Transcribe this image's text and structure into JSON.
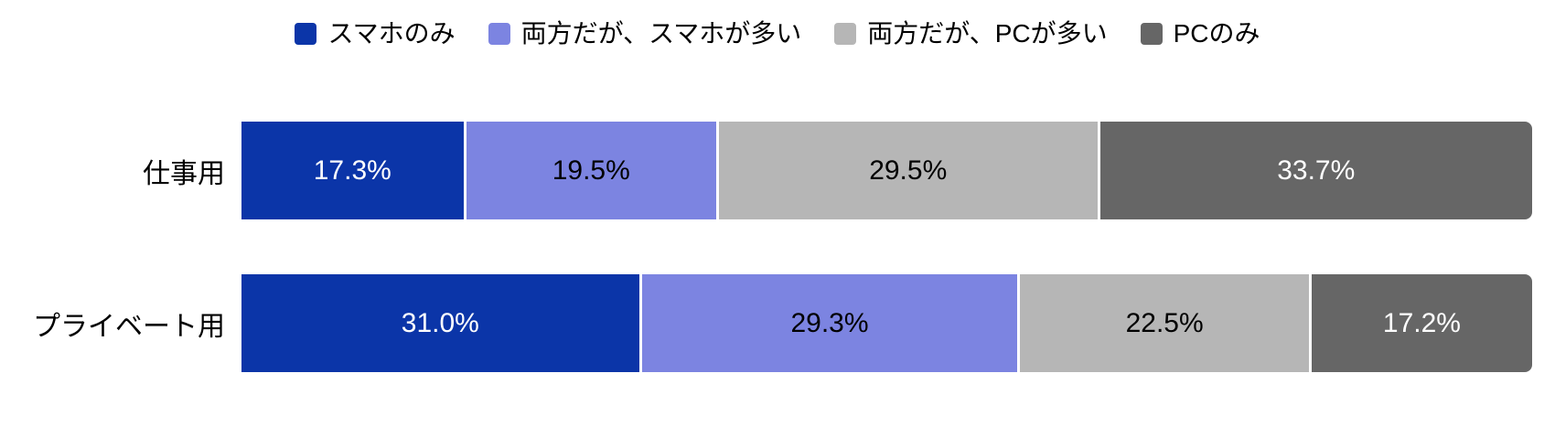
{
  "chart_data": {
    "type": "bar",
    "subtype": "horizontal-stacked-100",
    "title": "",
    "xlabel": "",
    "ylabel": "",
    "xlim": [
      0,
      100
    ],
    "grid": false,
    "legend_position": "top",
    "categories": [
      "仕事用",
      "プライベート用"
    ],
    "series": [
      {
        "name": "スマホのみ",
        "color": "#0B35A8",
        "text_color": "#FFFFFF",
        "values": [
          17.3,
          31.0
        ]
      },
      {
        "name": "両方だが、スマホが多い",
        "color": "#7C84E1",
        "text_color": "#000000",
        "values": [
          19.5,
          29.3
        ]
      },
      {
        "name": "両方だが、PCが多い",
        "color": "#B6B6B6",
        "text_color": "#000000",
        "values": [
          29.5,
          22.5
        ]
      },
      {
        "name": "PCのみ",
        "color": "#666666",
        "text_color": "#FFFFFF",
        "values": [
          33.7,
          17.2
        ]
      }
    ],
    "value_labels": [
      [
        "17.3%",
        "19.5%",
        "29.5%",
        "33.7%"
      ],
      [
        "31.0%",
        "29.3%",
        "22.5%",
        "17.2%"
      ]
    ]
  },
  "style": {
    "background": "#FFFFFF",
    "label_color": "#000000",
    "segment_gap_color": "#FFFFFF"
  }
}
